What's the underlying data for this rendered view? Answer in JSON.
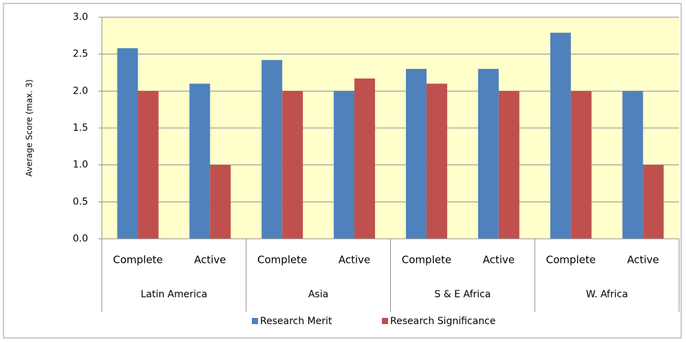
{
  "chart_data": {
    "type": "bar",
    "y_label": "Average Score (max. 3)",
    "categories": [
      "Complete",
      "Active",
      "Complete",
      "Active",
      "Complete",
      "Active",
      "Complete",
      "Active"
    ],
    "groups": [
      "Latin America",
      "Asia",
      "S & E Africa",
      "W. Africa"
    ],
    "series": [
      {
        "name": "Research Merit",
        "color": "#4f81bd",
        "values": [
          2.58,
          2.1,
          2.42,
          2.0,
          2.3,
          2.3,
          2.79,
          2.0
        ]
      },
      {
        "name": "Research Significance",
        "color": "#c0504d",
        "values": [
          2.0,
          1.0,
          2.0,
          2.17,
          2.1,
          2.0,
          2.0,
          1.0
        ]
      }
    ],
    "ylim": [
      0,
      3
    ],
    "yticks": [
      {
        "value": 0,
        "label": "0.0"
      },
      {
        "value": 0.5,
        "label": "0.5"
      },
      {
        "value": 1,
        "label": "1.0"
      },
      {
        "value": 1.5,
        "label": "1.5"
      },
      {
        "value": 2,
        "label": "2.0"
      },
      {
        "value": 2.5,
        "label": "2.5"
      },
      {
        "value": 3,
        "label": "3.0"
      }
    ],
    "grid": true,
    "plot_background": "#ffffcc",
    "legend": "bottom"
  }
}
